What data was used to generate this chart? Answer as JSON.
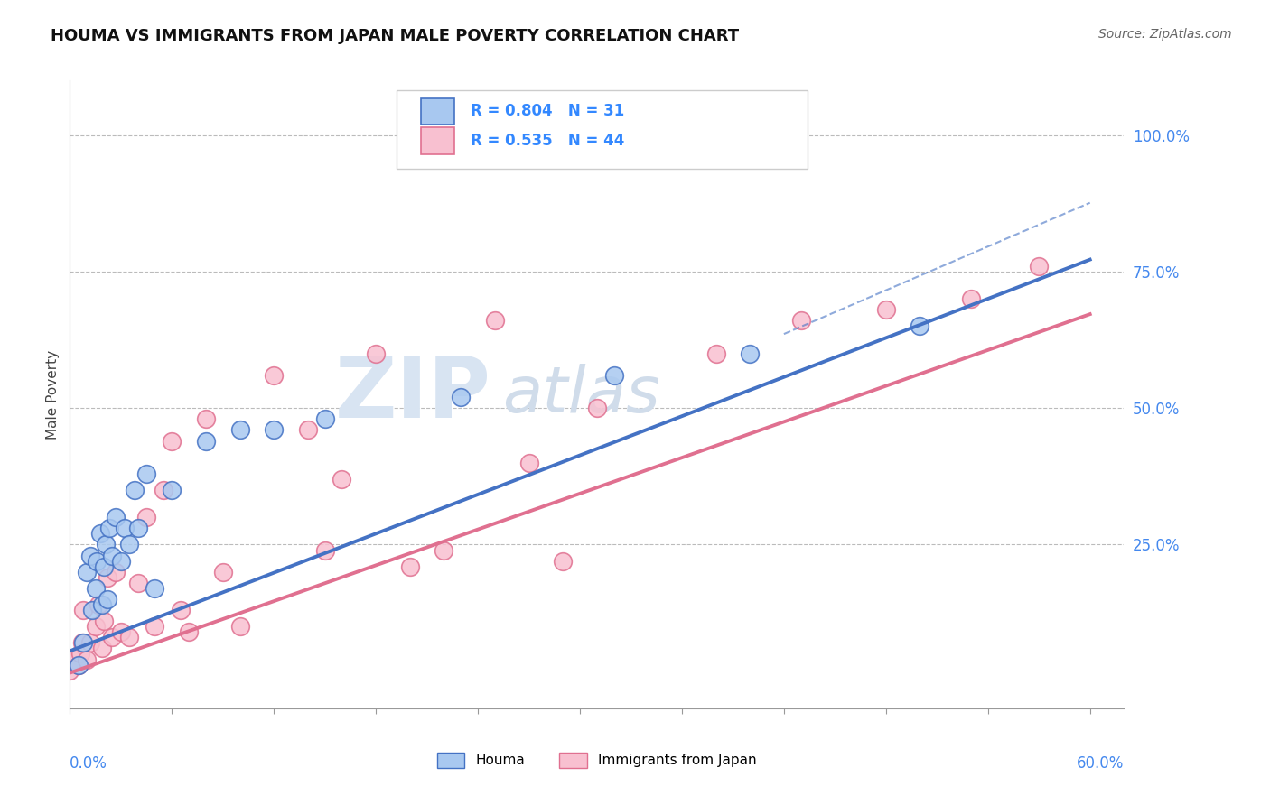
{
  "title": "HOUMA VS IMMIGRANTS FROM JAPAN MALE POVERTY CORRELATION CHART",
  "source": "Source: ZipAtlas.com",
  "ylabel": "Male Poverty",
  "xlim": [
    0.0,
    0.62
  ],
  "ylim": [
    -0.05,
    1.1
  ],
  "plot_xlim": [
    0.0,
    0.6
  ],
  "ytick_vals": [
    0.25,
    0.5,
    0.75,
    1.0
  ],
  "ytick_labels": [
    "25.0%",
    "50.0%",
    "75.0%",
    "100.0%"
  ],
  "xtick_left_label": "0.0%",
  "xtick_right_label": "60.0%",
  "houma_R": 0.804,
  "houma_N": 31,
  "japan_R": 0.535,
  "japan_N": 44,
  "houma_scatter_color": "#a8c8f0",
  "houma_edge_color": "#4472c4",
  "japan_scatter_color": "#f8c0d0",
  "japan_edge_color": "#e07090",
  "houma_line_color": "#4472c4",
  "japan_line_color": "#e07090",
  "grid_color": "#bbbbbb",
  "houma_trend": [
    0.055,
    1.195
  ],
  "japan_trend": [
    0.015,
    1.095
  ],
  "dash_trend": [
    0.075,
    1.335
  ],
  "houma_x": [
    0.005,
    0.008,
    0.01,
    0.012,
    0.013,
    0.015,
    0.016,
    0.018,
    0.019,
    0.02,
    0.021,
    0.022,
    0.023,
    0.025,
    0.027,
    0.03,
    0.032,
    0.035,
    0.038,
    0.04,
    0.045,
    0.05,
    0.06,
    0.08,
    0.1,
    0.12,
    0.15,
    0.23,
    0.32,
    0.4,
    0.5
  ],
  "houma_y": [
    0.03,
    0.07,
    0.2,
    0.23,
    0.13,
    0.17,
    0.22,
    0.27,
    0.14,
    0.21,
    0.25,
    0.15,
    0.28,
    0.23,
    0.3,
    0.22,
    0.28,
    0.25,
    0.35,
    0.28,
    0.38,
    0.17,
    0.35,
    0.44,
    0.46,
    0.46,
    0.48,
    0.52,
    0.56,
    0.6,
    0.65
  ],
  "japan_x": [
    0.0,
    0.002,
    0.005,
    0.006,
    0.007,
    0.008,
    0.01,
    0.012,
    0.015,
    0.017,
    0.019,
    0.02,
    0.022,
    0.025,
    0.027,
    0.03,
    0.035,
    0.04,
    0.045,
    0.05,
    0.055,
    0.06,
    0.065,
    0.07,
    0.08,
    0.09,
    0.1,
    0.12,
    0.14,
    0.15,
    0.16,
    0.18,
    0.2,
    0.22,
    0.25,
    0.27,
    0.29,
    0.31,
    0.35,
    0.38,
    0.43,
    0.48,
    0.53,
    0.57
  ],
  "japan_y": [
    0.02,
    0.04,
    0.03,
    0.05,
    0.07,
    0.13,
    0.04,
    0.07,
    0.1,
    0.14,
    0.06,
    0.11,
    0.19,
    0.08,
    0.2,
    0.09,
    0.08,
    0.18,
    0.3,
    0.1,
    0.35,
    0.44,
    0.13,
    0.09,
    0.48,
    0.2,
    0.1,
    0.56,
    0.46,
    0.24,
    0.37,
    0.6,
    0.21,
    0.24,
    0.66,
    0.4,
    0.22,
    0.5,
    1.02,
    0.6,
    0.66,
    0.68,
    0.7,
    0.76
  ],
  "background": "#ffffff"
}
